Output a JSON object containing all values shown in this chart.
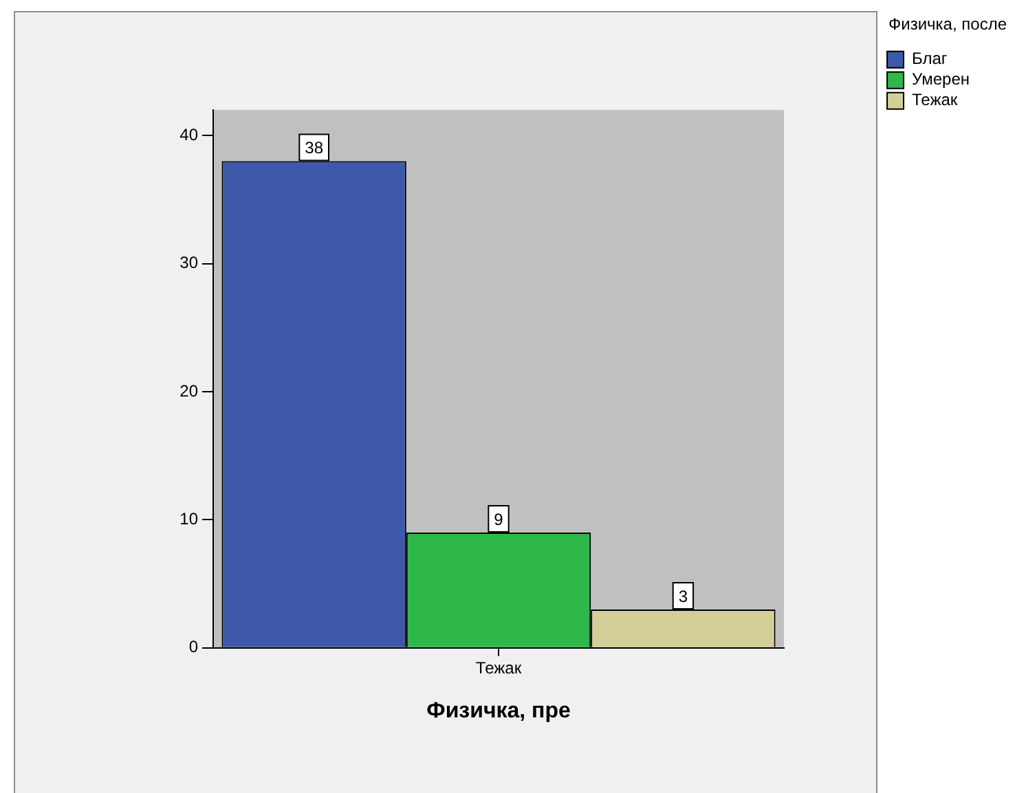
{
  "chart_data": {
    "type": "bar",
    "xlabel": "Физичка, пре",
    "legend_title": "Физичка, после",
    "categories": [
      "Тежак"
    ],
    "series": [
      {
        "name": "Благ",
        "color": "#3e58aa",
        "values": [
          38
        ]
      },
      {
        "name": "Умерен",
        "color": "#2eb84a",
        "values": [
          9
        ]
      },
      {
        "name": "Тежак",
        "color": "#d4ce98",
        "values": [
          3
        ]
      }
    ],
    "ylim": [
      0,
      42
    ],
    "yticks": [
      0,
      10,
      20,
      30,
      40
    ],
    "grid": false,
    "legend": "top right",
    "data_labels": true
  }
}
